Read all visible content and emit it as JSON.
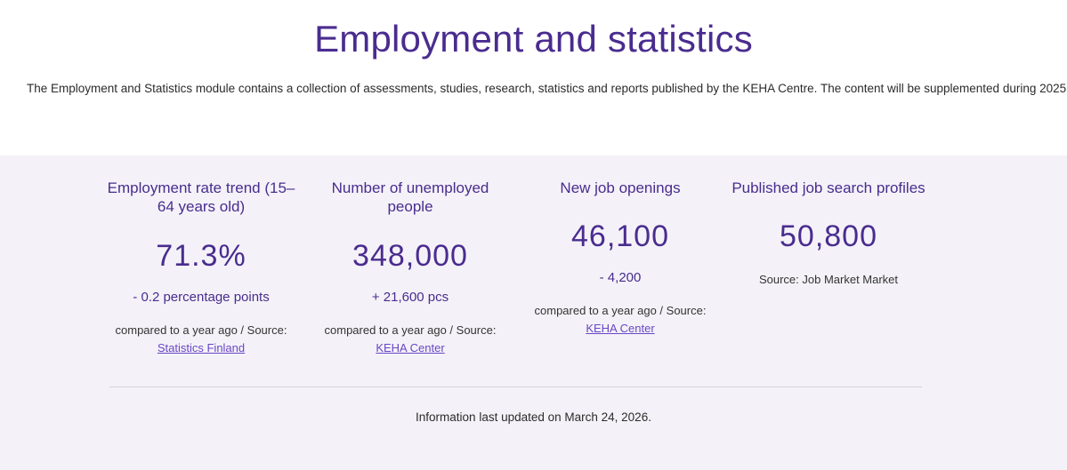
{
  "header": {
    "title": "Employment and statistics",
    "intro": "The Employment and Statistics module contains a collection of assessments, studies, research, statistics and reports published by the KEHA Centre. The content will be supplemented during 2025."
  },
  "stats": [
    {
      "title": "Employment rate trend (15–64 years old)",
      "value": "71.3%",
      "change": "- 0.2 percentage points",
      "note": "compared to a year ago / Source:",
      "source_link": "Statistics Finland"
    },
    {
      "title": "Number of unemployed people",
      "value": "348,000",
      "change": "+ 21,600 pcs",
      "note": "compared to a year ago / Source:",
      "source_link": "KEHA Center"
    },
    {
      "title": "New job openings",
      "value": "46,100",
      "change": "- 4,200",
      "note": "compared to a year ago / Source:",
      "source_link": "KEHA Center"
    },
    {
      "title": "Published job search profiles",
      "value": "50,800",
      "note": "Source: Job Market Market"
    }
  ],
  "footer": {
    "updated": "Information last updated on March 24, 2026."
  },
  "colors": {
    "accent": "#4a2c8f",
    "link": "#6a46c7",
    "band_background": "#f4f2f8"
  }
}
